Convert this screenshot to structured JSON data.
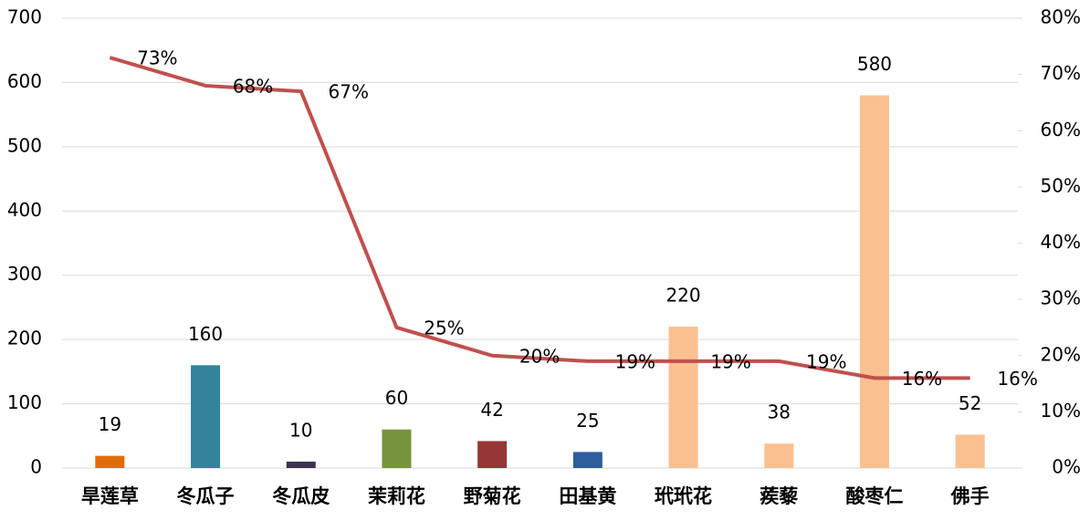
{
  "chart_data": {
    "type": "bar",
    "categories": [
      "旱莲草",
      "冬瓜子",
      "冬瓜皮",
      "茉莉花",
      "野菊花",
      "田基黄",
      "玳玳花",
      "蒺藜",
      "酸枣仁",
      "佛手"
    ],
    "series": [
      {
        "type": "bar",
        "colors": [
          "#e36c0a",
          "#31849b",
          "#403151",
          "#77933c",
          "#953735",
          "#2e5e9e",
          "#fac090",
          "#fac090",
          "#fac090",
          "#fac090"
        ],
        "values": [
          19,
          160,
          10,
          60,
          42,
          25,
          220,
          38,
          580,
          52
        ]
      },
      {
        "type": "line",
        "axis": "y2",
        "color": "#c0504d",
        "values": [
          73,
          68,
          67,
          25,
          20,
          19,
          19,
          19,
          16,
          16
        ],
        "value_labels": [
          "73%",
          "68%",
          "67%",
          "25%",
          "20%",
          "19%",
          "19%",
          "19%",
          "16%",
          "16%"
        ]
      }
    ],
    "ylim": [
      0,
      700
    ],
    "yticks": [
      0,
      100,
      200,
      300,
      400,
      500,
      600,
      700
    ],
    "y2lim": [
      0,
      80
    ],
    "y2ticks": [
      {
        "value": 0,
        "label": "0%"
      },
      {
        "value": 10,
        "label": "10%"
      },
      {
        "value": 20,
        "label": "20%"
      },
      {
        "value": 30,
        "label": "30%"
      },
      {
        "value": 40,
        "label": "40%"
      },
      {
        "value": 50,
        "label": "50%"
      },
      {
        "value": 60,
        "label": "60%"
      },
      {
        "value": 70,
        "label": "70%"
      },
      {
        "value": 80,
        "label": "80%"
      }
    ],
    "grid": true
  }
}
